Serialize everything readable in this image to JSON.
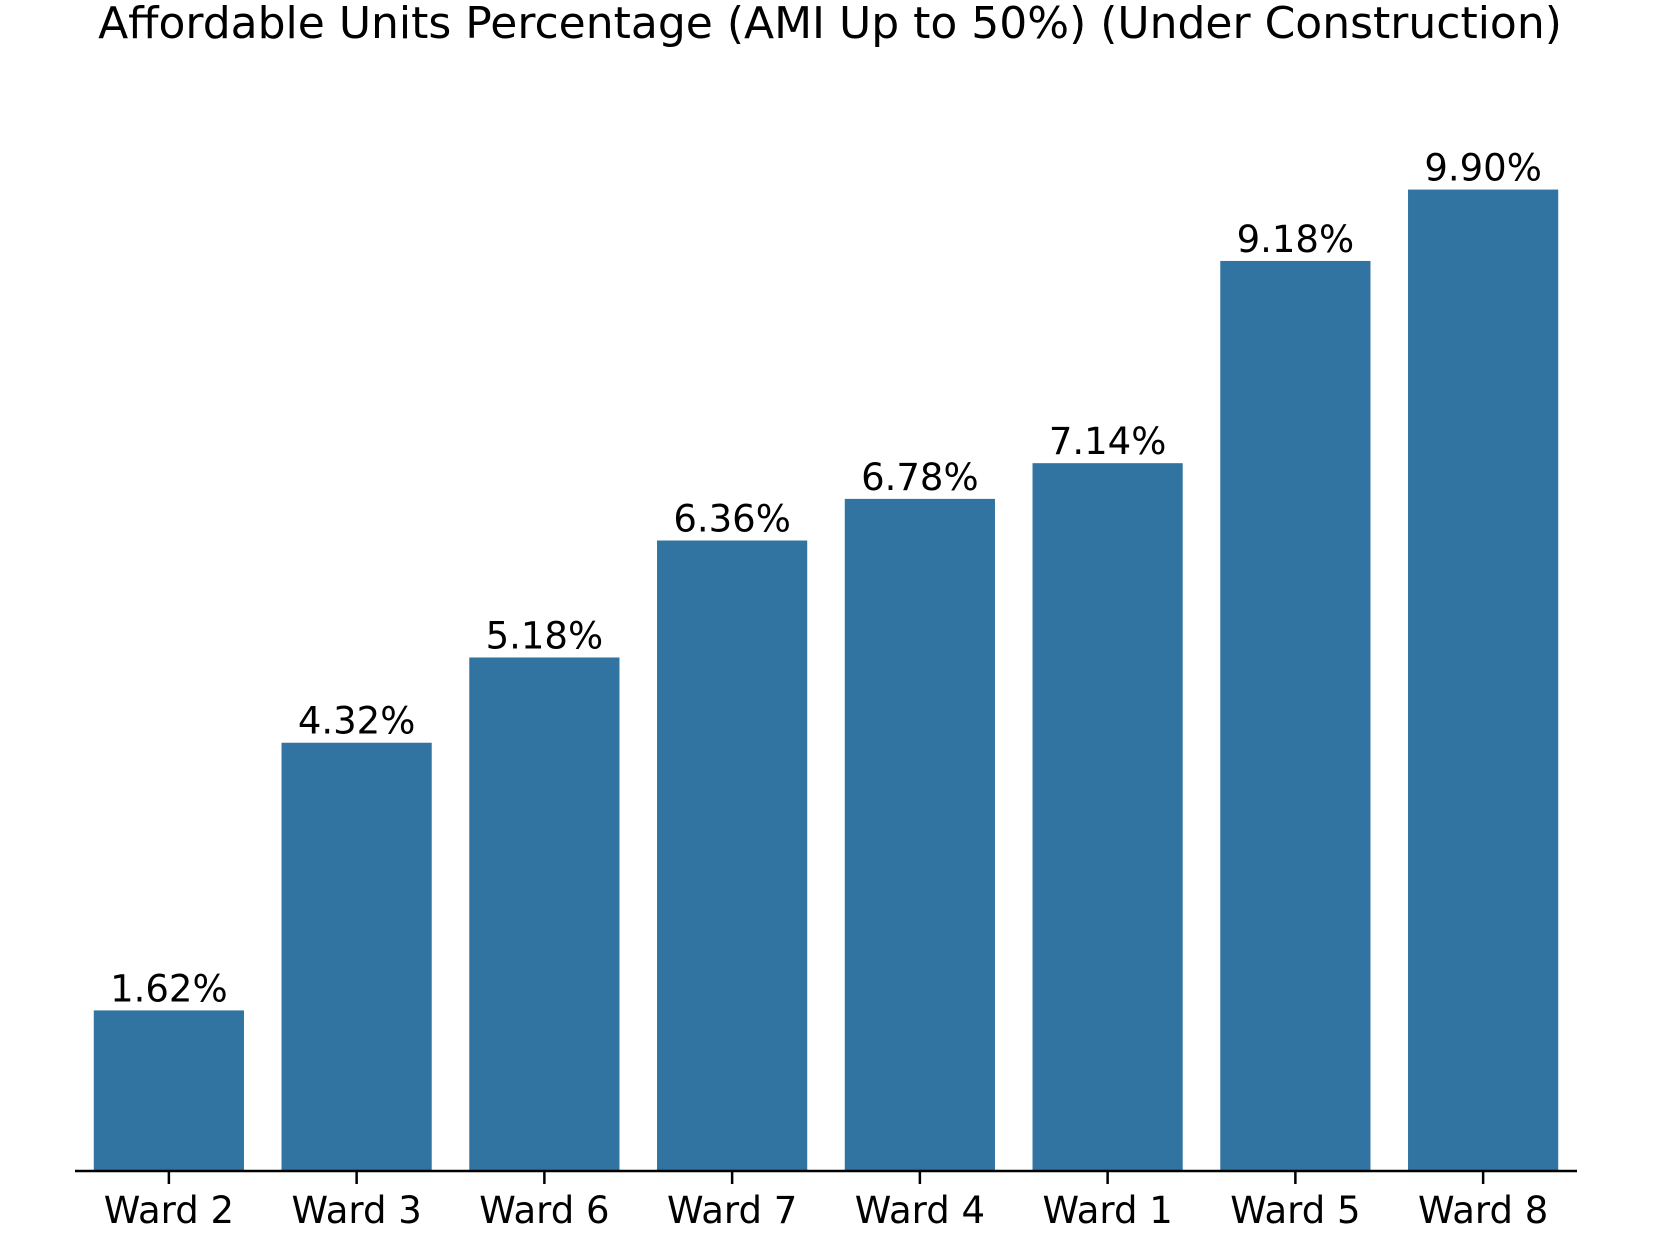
{
  "chart_data": {
    "type": "bar",
    "title": "Affordable Units Percentage (AMI Up to 50%) (Under Construction)",
    "xlabel": "",
    "ylabel": "",
    "categories": [
      "Ward 2",
      "Ward 3",
      "Ward 6",
      "Ward 7",
      "Ward 4",
      "Ward 1",
      "Ward 5",
      "Ward 8"
    ],
    "values": [
      1.62,
      4.32,
      5.18,
      6.36,
      6.78,
      7.14,
      9.18,
      9.9
    ],
    "value_labels": [
      "1.62%",
      "4.32%",
      "5.18%",
      "6.36%",
      "6.78%",
      "7.14%",
      "9.18%",
      "9.90%"
    ],
    "ylim": [
      0,
      10.4
    ],
    "bar_color": "#3274a1",
    "grid": false,
    "y_axis_visible": false
  }
}
